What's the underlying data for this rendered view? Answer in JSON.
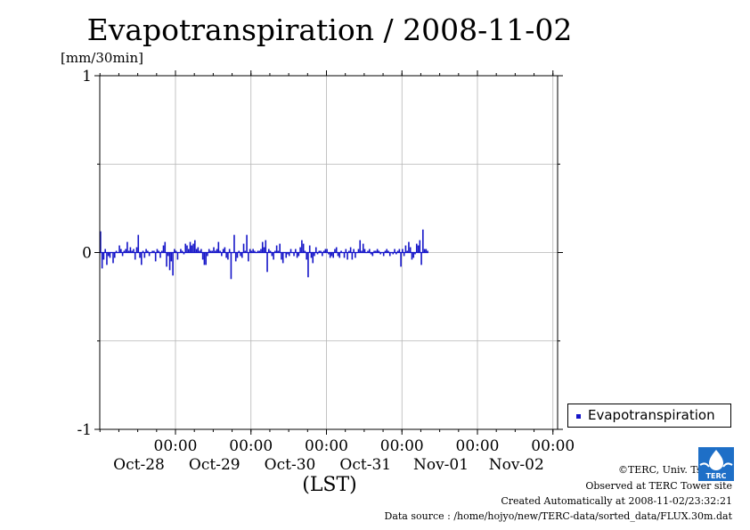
{
  "chart_data": {
    "type": "bar",
    "title": "Evapotranspiration / 2008-11-02",
    "ylabel": "[mm/30min]",
    "xlabel": "(LST)",
    "ylim": [
      -1,
      1
    ],
    "yticks": [
      "1",
      "0",
      "-1"
    ],
    "xticks": [
      {
        "time": "00:00",
        "date": "Oct-28"
      },
      {
        "time": "00:00",
        "date": "Oct-29"
      },
      {
        "time": "00:00",
        "date": "Oct-30"
      },
      {
        "time": "00:00",
        "date": "Oct-31"
      },
      {
        "time": "00:00",
        "date": "Nov-01"
      },
      {
        "time": "00:00",
        "date": "Nov-02"
      }
    ],
    "grid": true,
    "legend_position": "bottom-right",
    "series": [
      {
        "name": "Evapotranspiration",
        "color": "#1515c8",
        "start": "2008-10-27 09:00",
        "interval": "30min",
        "values": [
          0.12,
          -0.09,
          -0.04,
          0.02,
          -0.07,
          -0.02,
          -0.03,
          0,
          -0.06,
          -0.03,
          0.01,
          0,
          0.04,
          0.02,
          -0.02,
          0.01,
          0.02,
          0.06,
          0.01,
          0.03,
          0.01,
          0.02,
          -0.04,
          0.03,
          0.1,
          -0.03,
          -0.07,
          0.01,
          -0.03,
          0.02,
          0.01,
          -0.02,
          0,
          0.01,
          0.01,
          -0.05,
          0.02,
          0.01,
          -0.03,
          0.01,
          0.04,
          0.06,
          -0.08,
          -0.02,
          -0.1,
          -0.05,
          -0.13,
          0.02,
          0.01,
          -0.04,
          0,
          0.02,
          0.01,
          -0.01,
          0.05,
          0.04,
          0.02,
          0.06,
          0.04,
          0.05,
          0.07,
          0.02,
          0.03,
          0.01,
          0.02,
          -0.04,
          -0.07,
          -0.07,
          -0.02,
          0.02,
          0.01,
          0.01,
          0.03,
          0.01,
          0.02,
          0.06,
          0.01,
          -0.02,
          0.02,
          0.03,
          -0.03,
          -0.04,
          0.02,
          -0.15,
          0,
          0.1,
          -0.05,
          -0.03,
          0.01,
          -0.02,
          -0.03,
          0.05,
          0.01,
          0.1,
          -0.05,
          0.02,
          0.01,
          0.02,
          0.01,
          0,
          0.01,
          0.01,
          0.02,
          0.06,
          0.03,
          0.07,
          -0.11,
          0.02,
          0.01,
          -0.02,
          -0.04,
          0.01,
          0.04,
          0.01,
          0.05,
          -0.04,
          -0.06,
          0,
          -0.03,
          -0.01,
          -0.02,
          0.02,
          0,
          -0.02,
          0.02,
          -0.03,
          -0.02,
          0.03,
          0.07,
          0.05,
          0.01,
          -0.04,
          -0.14,
          0.04,
          -0.03,
          -0.06,
          -0.02,
          0.03,
          -0.01,
          0.01,
          0.01,
          -0.02,
          0.01,
          0.02,
          0.02,
          -0.01,
          -0.03,
          -0.02,
          -0.03,
          0.02,
          0.03,
          -0.02,
          -0.03,
          0.01,
          0,
          -0.03,
          0.02,
          -0.04,
          0.01,
          0.03,
          -0.04,
          0.02,
          -0.03,
          0,
          0.02,
          0.07,
          0.01,
          0.05,
          0.02,
          0,
          0.01,
          0.02,
          -0.01,
          -0.02,
          0.01,
          0.01,
          0.02,
          0.01,
          -0.01,
          0,
          -0.02,
          0.01,
          0.02,
          0.01,
          -0.02,
          0,
          -0.01,
          0.02,
          -0.01,
          0.01,
          0.02,
          -0.08,
          0.02,
          -0.02,
          0.04,
          0.01,
          0.06,
          0.03,
          -0.04,
          -0.03,
          -0.01,
          0.05,
          0.04,
          0.07,
          -0.07,
          0.13,
          0.02,
          0.02,
          0.01
        ]
      }
    ]
  },
  "credits": {
    "copyright": "©TERC, Univ. Tsukuba",
    "observed": "Observed at TERC Tower site",
    "created": "Created Automatically at 2008-11-02/23:32:21",
    "source": "Data source : /home/hojyo/new/TERC-data/sorted_data/FLUX.30m.dat"
  },
  "logo": {
    "text": "TERC",
    "color": "#1e6fc7"
  }
}
